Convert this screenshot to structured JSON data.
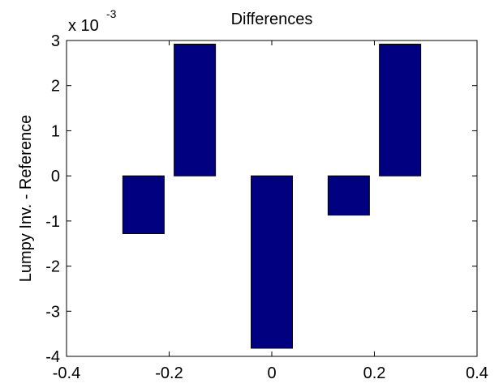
{
  "chart_data": {
    "type": "bar",
    "title": "Differences",
    "ylabel": "Lumpy Inv. - Reference",
    "y_multiplier": "x 10",
    "y_multiplier_exponent": "-3",
    "x": [
      -0.25,
      -0.15,
      0,
      0.15,
      0.25
    ],
    "values": [
      -1.28,
      2.92,
      -3.82,
      -0.87,
      2.92
    ],
    "color": "#000080",
    "xlim": [
      -0.4,
      0.4
    ],
    "xticks": [
      -0.4,
      -0.2,
      0,
      0.2,
      0.4
    ],
    "ylim": [
      -4,
      3
    ],
    "yticks": [
      -4,
      -3,
      -2,
      -1,
      0,
      1,
      2,
      3
    ],
    "grid": false
  }
}
